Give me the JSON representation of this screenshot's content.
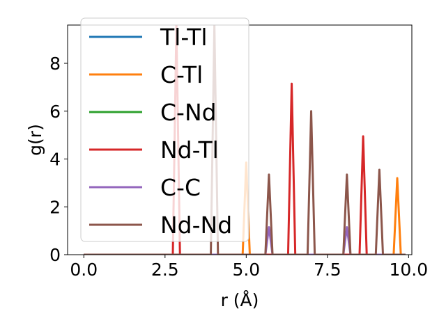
{
  "chart_data": {
    "type": "line",
    "title": "",
    "xlabel": "r (Å)",
    "ylabel": "g(r)",
    "xlim": [
      -0.5,
      10.1
    ],
    "ylim": [
      0,
      9.6
    ],
    "x_ticks": [
      0.0,
      2.5,
      5.0,
      7.5,
      10.0
    ],
    "x_tick_labels": [
      "0.0",
      "2.5",
      "5.0",
      "7.5",
      "10.0"
    ],
    "y_ticks": [
      0,
      2,
      4,
      6,
      8
    ],
    "y_tick_labels": [
      "0",
      "2",
      "4",
      "6",
      "8"
    ],
    "x_range": [
      0.0,
      9.9
    ],
    "peak_halfwidth": 0.11,
    "legend_position": "upper-left",
    "grid": false,
    "series": [
      {
        "name": "Tl-Tl",
        "color": "#1f77b4",
        "peaks": []
      },
      {
        "name": "C-Tl",
        "color": "#ff7f0e",
        "peaks": [
          [
            5.0,
            3.85
          ],
          [
            9.65,
            3.2
          ]
        ]
      },
      {
        "name": "C-Nd",
        "color": "#2ca02c",
        "peaks": []
      },
      {
        "name": "Nd-Tl",
        "color": "#d62728",
        "peaks": [
          [
            2.85,
            9.6
          ],
          [
            6.4,
            7.15
          ],
          [
            8.6,
            4.95
          ]
        ]
      },
      {
        "name": "C-C",
        "color": "#9467bd",
        "peaks": [
          [
            5.7,
            1.15
          ],
          [
            8.1,
            1.15
          ]
        ]
      },
      {
        "name": "Nd-Nd",
        "color": "#8c564b",
        "peaks": [
          [
            4.02,
            9.6
          ],
          [
            5.7,
            3.35
          ],
          [
            7.0,
            6.0
          ],
          [
            8.1,
            3.35
          ],
          [
            9.1,
            3.55
          ]
        ]
      }
    ]
  }
}
